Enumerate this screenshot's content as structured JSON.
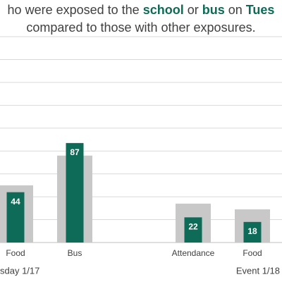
{
  "chart_data": {
    "type": "bar",
    "title": [
      "ho were exposed to the ",
      "school",
      " or ",
      "bus",
      " on ",
      "Tues"
    ],
    "subtitle": "compared to those with other exposures.",
    "categories": [
      "Food",
      "Bus",
      null,
      "Attendance",
      "Food"
    ],
    "groups": [
      "sday 1/17",
      "Event 1/18"
    ],
    "series": [
      {
        "color": "#c8c8c8",
        "values": [
          50,
          76,
          null,
          34,
          29
        ]
      },
      {
        "color": "#0e6b57",
        "values": [
          44,
          87,
          null,
          22,
          18
        ]
      }
    ],
    "ylim": [
      0,
      180
    ],
    "yticks": [
      0,
      20,
      40,
      60,
      80,
      100,
      120,
      140,
      160,
      180
    ],
    "grid": true
  }
}
